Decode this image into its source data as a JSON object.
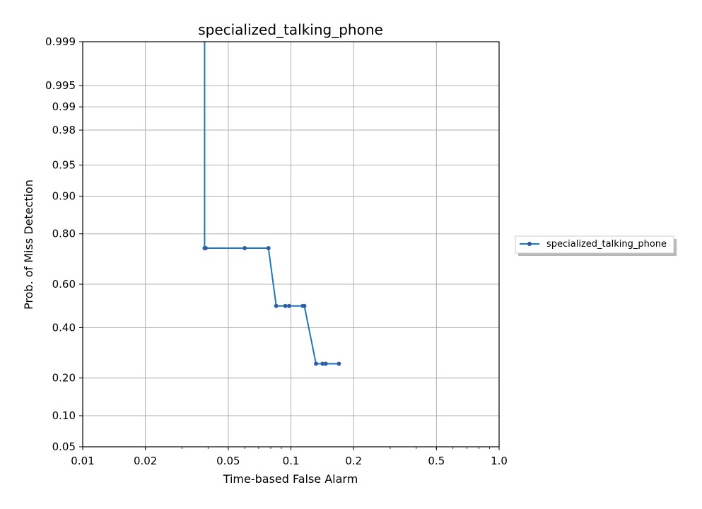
{
  "chart_data": {
    "type": "line",
    "title": "specialized_talking_phone",
    "xlabel": "Time-based False Alarm",
    "ylabel": "Prob. of Miss Detection",
    "x_scale": "log",
    "y_scale": "probit",
    "xlim": [
      0.01,
      1.0
    ],
    "ylim": [
      0.05,
      0.999
    ],
    "x_ticks": [
      0.01,
      0.02,
      0.05,
      0.1,
      0.2,
      0.5,
      1.0
    ],
    "x_tick_labels": [
      "0.01",
      "0.02",
      "0.05",
      "0.1",
      "0.2",
      "0.5",
      "1.0"
    ],
    "y_ticks": [
      0.05,
      0.1,
      0.2,
      0.4,
      0.6,
      0.8,
      0.9,
      0.95,
      0.98,
      0.99,
      0.995,
      0.999
    ],
    "y_tick_labels": [
      "0.05",
      "0.10",
      "0.20",
      "0.40",
      "0.60",
      "0.80",
      "0.90",
      "0.95",
      "0.98",
      "0.99",
      "0.995",
      "0.999"
    ],
    "grid": true,
    "legend_position": "right, outside plot",
    "series": [
      {
        "name": "specialized_talking_phone",
        "color": "#1f77b4",
        "marker_color": "#4a4a9a",
        "x": [
          0.0385,
          0.0385,
          0.0385,
          0.039,
          0.06,
          0.078,
          0.085,
          0.094,
          0.098,
          0.114,
          0.116,
          0.132,
          0.142,
          0.147,
          0.17
        ],
        "y": [
          0.999,
          0.75,
          0.75,
          0.75,
          0.75,
          0.75,
          0.5,
          0.5,
          0.5,
          0.5,
          0.5,
          0.25,
          0.25,
          0.25,
          0.25
        ],
        "markers": [
          false,
          true,
          true,
          true,
          true,
          true,
          true,
          true,
          true,
          true,
          true,
          true,
          true,
          true,
          true
        ]
      }
    ]
  }
}
